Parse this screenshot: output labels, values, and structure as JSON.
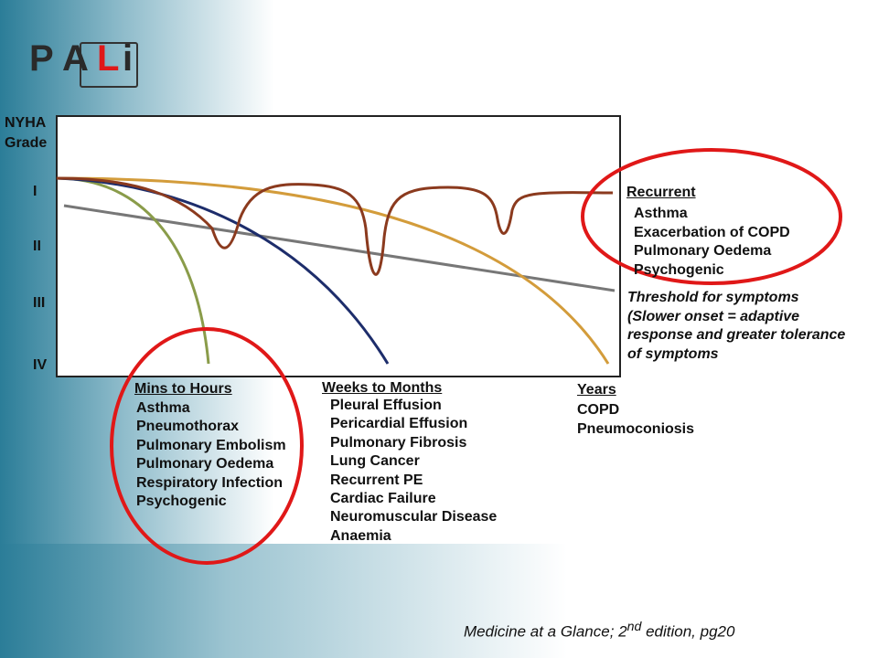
{
  "logo": {
    "letters": [
      "P",
      "A",
      "L",
      "i"
    ]
  },
  "axis": {
    "label_lines": [
      "NYHA",
      "Grade"
    ],
    "grades": [
      "I",
      "II",
      "III",
      "IV"
    ]
  },
  "recurrent": {
    "heading": "Recurrent",
    "items": [
      "Asthma",
      "Exacerbation of COPD",
      "Pulmonary Oedema",
      "Psychogenic"
    ]
  },
  "threshold": {
    "lines": [
      "Threshold for symptoms",
      "(Slower onset = adaptive",
      "response and greater tolerance",
      "of symptoms"
    ]
  },
  "mins_to_hours": {
    "heading": "Mins to Hours",
    "items": [
      "Asthma",
      "Pneumothorax",
      "Pulmonary Embolism",
      "Pulmonary Oedema",
      "Respiratory Infection",
      "Psychogenic"
    ]
  },
  "weeks_to_months": {
    "heading": "Weeks to Months",
    "items": [
      "Pleural Effusion",
      "Pericardial Effusion",
      "Pulmonary Fibrosis",
      "Lung Cancer",
      "Recurrent PE",
      "Cardiac Failure",
      "Neuromuscular Disease",
      "Anaemia"
    ]
  },
  "years": {
    "heading": "Years",
    "items": [
      "COPD",
      "Pneumoconiosis"
    ]
  },
  "citation": {
    "before": "Medicine at a Glance; 2",
    "sup": "nd",
    "after": " edition, pg20"
  }
}
